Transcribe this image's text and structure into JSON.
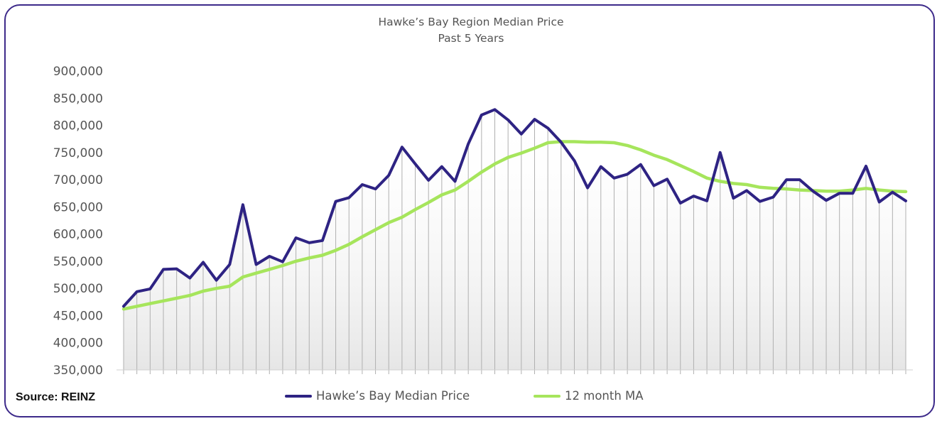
{
  "chart_data": {
    "type": "line",
    "title": "Hawke’s Bay Region Median Price",
    "subtitle": "Past 5 Years",
    "xlabel": "",
    "ylabel": "",
    "ylim": [
      350000,
      900000
    ],
    "yticks": [
      "900,000",
      "850,000",
      "800,000",
      "750,000",
      "700,000",
      "650,000",
      "600,000",
      "550,000",
      "500,000",
      "450,000",
      "400,000",
      "350,000"
    ],
    "ytick_values": [
      900000,
      850000,
      800000,
      750000,
      700000,
      650000,
      600000,
      550000,
      500000,
      450000,
      400000,
      350000
    ],
    "grid": false,
    "legend_position": "bottom",
    "series": [
      {
        "name": "Hawke’s Bay Median Price",
        "color": "#2e2383",
        "values": [
          467000,
          494000,
          499000,
          535000,
          536000,
          519000,
          548000,
          515000,
          544000,
          654000,
          544000,
          559000,
          549000,
          593000,
          584000,
          588000,
          660000,
          667000,
          691000,
          683000,
          708000,
          760000,
          729000,
          699000,
          724000,
          697000,
          766000,
          819000,
          829000,
          810000,
          784000,
          811000,
          795000,
          769000,
          735000,
          685000,
          724000,
          703000,
          710000,
          728000,
          689000,
          701000,
          657000,
          670000,
          661000,
          750000,
          666000,
          680000,
          660000,
          668000,
          700000,
          700000,
          679000,
          662000,
          675000,
          675000,
          725000,
          659000,
          677000,
          661000
        ]
      },
      {
        "name": "12 month MA",
        "color": "#a6e55c",
        "values": [
          462000,
          467000,
          472000,
          477000,
          482000,
          487000,
          495000,
          500000,
          504000,
          521000,
          528000,
          535000,
          542000,
          550000,
          556000,
          561000,
          570000,
          581000,
          595000,
          608000,
          621000,
          631000,
          645000,
          658000,
          672000,
          681000,
          697000,
          714000,
          729000,
          741000,
          749000,
          758000,
          768000,
          770000,
          770000,
          769000,
          769000,
          768000,
          763000,
          755000,
          745000,
          737000,
          726000,
          715000,
          703000,
          697000,
          693000,
          691000,
          686000,
          684000,
          683000,
          681000,
          680000,
          679000,
          679000,
          681000,
          684000,
          681000,
          679000,
          678000
        ]
      }
    ]
  },
  "footer": {
    "source": "Source: REINZ"
  },
  "colors": {
    "frame": "#3d2a8a",
    "area_line": "#b0b0b0"
  }
}
